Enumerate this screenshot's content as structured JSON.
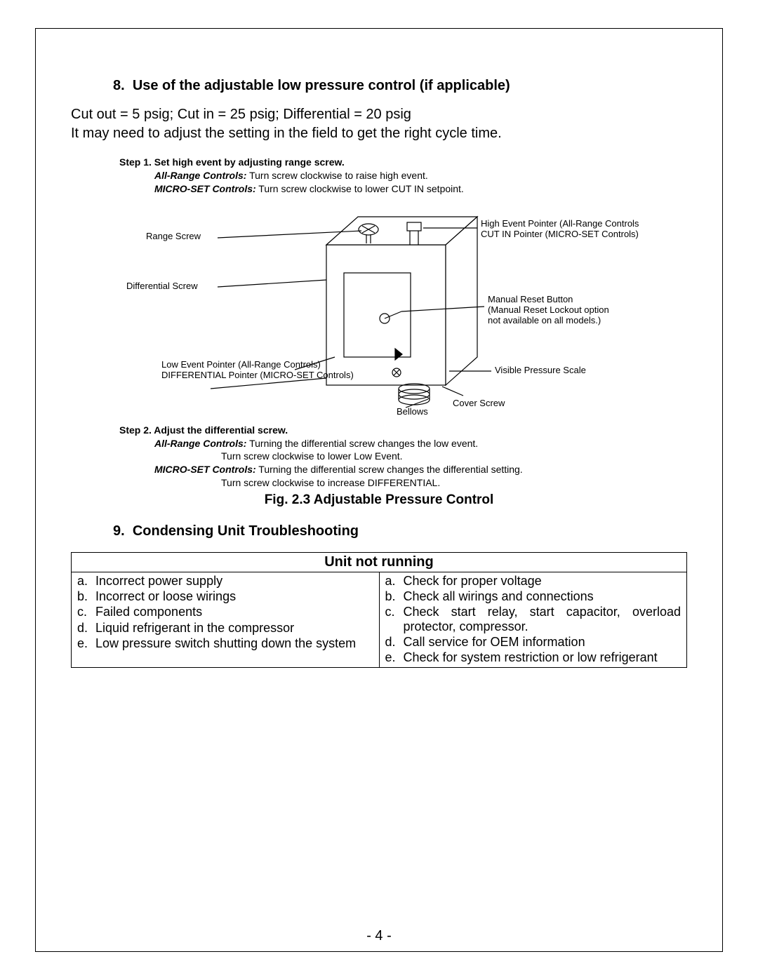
{
  "section8": {
    "number": "8.",
    "title": "Use of the adjustable low pressure control (if applicable)",
    "line1": "Cut out = 5 psig; Cut in = 25 psig; Differential = 20 psig",
    "line2": "It may need to adjust the setting in the field to get the right cycle time."
  },
  "diagram": {
    "step1_title": "Step 1. Set high event by adjusting range screw.",
    "step1_a_label": "All-Range Controls:",
    "step1_a_text": " Turn screw clockwise to raise high event.",
    "step1_b_label": "MICRO-SET Controls:",
    "step1_b_text": " Turn screw clockwise to lower CUT IN setpoint.",
    "labels": {
      "range_screw": "Range Screw",
      "diff_screw": "Differential Screw",
      "high_event": "High Event Pointer (All-Range Controls)\nCUT IN Pointer (MICRO-SET Controls)",
      "manual_reset": "Manual Reset Button\n(Manual Reset Lockout option\nnot available on all models.)",
      "low_event": "Low Event Pointer  (All-Range Controls)\nDIFFERENTIAL Pointer  (MICRO-SET Controls)",
      "visible_scale": "Visible Pressure Scale",
      "bellows": "Bellows",
      "cover_screw": "Cover Screw"
    },
    "step2_title": "Step 2. Adjust the differential screw.",
    "step2_a_label": "All-Range Controls:",
    "step2_a_text": " Turning the differential screw changes the low event.",
    "step2_a_text2": "Turn screw clockwise to lower Low Event.",
    "step2_b_label": "MICRO-SET Controls:",
    "step2_b_text": " Turning the differential screw changes the differential setting.",
    "step2_b_text2": "Turn screw clockwise to increase DIFFERENTIAL.",
    "caption": "Fig. 2.3 Adjustable Pressure Control"
  },
  "section9": {
    "number": "9.",
    "title": "Condensing Unit Troubleshooting"
  },
  "table": {
    "header": "Unit not running",
    "left": [
      {
        "m": "a.",
        "t": "Incorrect power supply"
      },
      {
        "m": "b.",
        "t": "Incorrect or loose wirings"
      },
      {
        "m": "c.",
        "t": "Failed components"
      },
      {
        "m": "",
        "t": ""
      },
      {
        "m": "d.",
        "t": "Liquid refrigerant in the compressor"
      },
      {
        "m": "e.",
        "t": "Low pressure switch shutting down the system"
      }
    ],
    "right": [
      {
        "m": "a.",
        "t": "Check for proper voltage"
      },
      {
        "m": "b.",
        "t": "Check all wirings and  connections"
      },
      {
        "m": "c.",
        "t": "Check start relay, start capacitor, overload protector, compressor.",
        "justify": true
      },
      {
        "m": "d.",
        "t": "Call service for OEM information"
      },
      {
        "m": "e.",
        "t": "Check for system restriction or low refrigerant",
        "justify": true
      }
    ]
  },
  "page_number": "- 4 -"
}
